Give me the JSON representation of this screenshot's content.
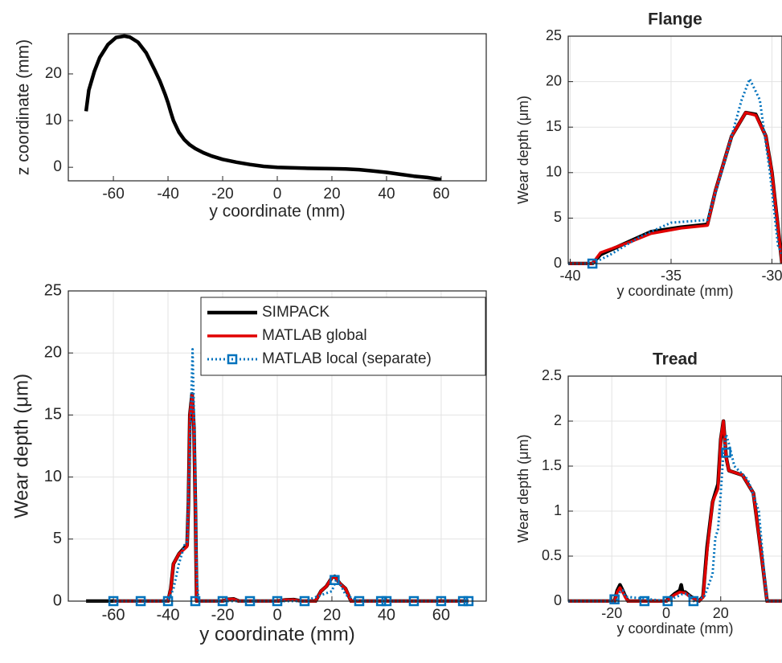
{
  "chart_data": [
    {
      "type": "line",
      "xlabel": "y coordinate (mm)",
      "ylabel": "z coordinate (mm)",
      "xlim": [
        -76.5,
        76.5
      ],
      "ylim": [
        -2.9,
        28.6
      ],
      "xticks": [
        -60,
        -40,
        -20,
        0,
        20,
        40,
        60
      ],
      "yticks": [
        0,
        10,
        20
      ],
      "grid": false,
      "series": [
        {
          "color": "#000000",
          "x": [
            -70,
            -69,
            -67,
            -65,
            -62,
            -59,
            -56,
            -54,
            -51,
            -48,
            -45,
            -43,
            -41,
            -40,
            -39,
            -38,
            -36,
            -34,
            -32,
            -30,
            -27,
            -24,
            -20,
            -15,
            -10,
            -5,
            0,
            5,
            10,
            15,
            20,
            25,
            30,
            35,
            40,
            45,
            50,
            55,
            60
          ],
          "values": [
            12,
            16.5,
            20.5,
            23.5,
            26.3,
            27.8,
            28.1,
            27.9,
            26.8,
            24.5,
            21,
            18.5,
            15.5,
            13.8,
            11.8,
            10,
            7.5,
            5.9,
            4.8,
            4,
            3.1,
            2.4,
            1.7,
            1.1,
            0.6,
            0.2,
            0,
            -0.1,
            -0.2,
            -0.25,
            -0.3,
            -0.35,
            -0.5,
            -0.8,
            -1.1,
            -1.5,
            -1.9,
            -2.2,
            -2.6
          ]
        }
      ]
    },
    {
      "type": "line",
      "xlabel": "y coordinate (mm)",
      "ylabel": "Wear depth (μm)",
      "xlim": [
        -76.5,
        76.5
      ],
      "ylim": [
        0,
        25
      ],
      "xticks": [
        -60,
        -40,
        -20,
        0,
        20,
        40,
        60
      ],
      "yticks": [
        0,
        5,
        10,
        15,
        20,
        25
      ],
      "grid": true,
      "legend": "upper right",
      "series": [
        {
          "name": "SIMPACK",
          "color": "#000000",
          "style": "solid",
          "x": [
            -70,
            -40,
            -39,
            -38,
            -36,
            -34,
            -33,
            -32.5,
            -32,
            -31.2,
            -30.5,
            -30,
            -29.5,
            -20,
            -18,
            -16,
            -14,
            0,
            3,
            6,
            9,
            14,
            16,
            18,
            20,
            21,
            23,
            25,
            27,
            70
          ],
          "values": [
            0,
            0,
            1,
            3,
            3.8,
            4.3,
            4.5,
            8,
            15,
            16.7,
            14,
            8,
            0,
            0,
            0.15,
            0.18,
            0,
            0,
            0.1,
            0.12,
            0,
            0,
            0.8,
            1.2,
            1.9,
            2,
            1.4,
            1,
            0,
            0
          ]
        },
        {
          "name": "MATLAB global",
          "color": "#e00000",
          "style": "solid",
          "x": [
            -60,
            -40,
            -39,
            -38,
            -36,
            -34,
            -33,
            -32.5,
            -32,
            -31.2,
            -30.5,
            -30,
            -29.5,
            -20,
            -18,
            -16,
            -14,
            0,
            3,
            6,
            9,
            14,
            16,
            18,
            20,
            21,
            23,
            25,
            27,
            70
          ],
          "values": [
            0,
            0,
            1,
            3,
            3.8,
            4.2,
            4.4,
            8,
            15,
            16.6,
            14,
            8,
            0,
            0,
            0.15,
            0.17,
            0,
            0,
            0.1,
            0.11,
            0,
            0,
            0.8,
            1.2,
            1.9,
            2,
            1.4,
            1,
            0,
            0
          ]
        },
        {
          "name": "MATLAB local (separate)",
          "color": "#0072bd",
          "style": "dotted",
          "x": [
            -60,
            -50,
            -40,
            -38,
            -36,
            -34,
            -33,
            -32,
            -31,
            -30.2,
            -29.5,
            -28.8,
            -20,
            -10,
            0,
            10,
            20,
            21.5,
            23,
            25,
            30,
            38,
            40,
            50,
            60,
            68,
            70
          ],
          "values": [
            0,
            0,
            0,
            1,
            3,
            4.5,
            4.8,
            12,
            20.3,
            12,
            2,
            0,
            0,
            0,
            0,
            0,
            0.8,
            1.7,
            1.4,
            0.5,
            0,
            0,
            0,
            0,
            0,
            0,
            0
          ],
          "markers": {
            "x": [
              -60,
              -50,
              -40,
              -30,
              -20,
              -10,
              0,
              10,
              21,
              30,
              38,
              40,
              50,
              60,
              68,
              70
            ],
            "values": [
              0,
              0,
              0,
              0,
              0,
              0,
              0,
              0,
              1.7,
              0,
              0,
              0,
              0,
              0,
              0,
              0
            ]
          }
        }
      ]
    },
    {
      "type": "line",
      "title": "Flange",
      "xlabel": "y coordinate (mm)",
      "ylabel": "Wear depth (μm)",
      "xlim": [
        -40.1,
        -29.5
      ],
      "ylim": [
        0,
        25
      ],
      "xticks": [
        -40,
        -35,
        -30
      ],
      "yticks": [
        0,
        5,
        10,
        15,
        20,
        25
      ],
      "grid": true,
      "series": [
        {
          "color": "#000000",
          "style": "solid",
          "x": [
            -40.1,
            -38.9,
            -38.5,
            -37,
            -36,
            -34.5,
            -33.2,
            -32.8,
            -32,
            -31.3,
            -30.8,
            -30.3,
            -30,
            -29.6,
            -29.5
          ],
          "values": [
            0,
            0,
            1,
            2.5,
            3.5,
            4,
            4.3,
            8,
            14,
            16.6,
            16.4,
            14,
            10,
            2,
            0
          ]
        },
        {
          "color": "#e00000",
          "style": "solid",
          "x": [
            -40.1,
            -38.9,
            -38.5,
            -37,
            -36,
            -34.5,
            -33.2,
            -32.8,
            -32,
            -31.3,
            -30.8,
            -30.3,
            -30,
            -29.6,
            -29.5
          ],
          "values": [
            0,
            0,
            1.2,
            2.4,
            3.3,
            3.9,
            4.2,
            8,
            14,
            16.6,
            16.3,
            14,
            10,
            2,
            0
          ]
        },
        {
          "color": "#0072bd",
          "style": "dotted",
          "x": [
            -40.1,
            -38.9,
            -38,
            -36.5,
            -35,
            -33.2,
            -32.5,
            -31.5,
            -31.1,
            -30.6,
            -30.1,
            -29.7,
            -29.3
          ],
          "values": [
            0,
            0,
            1,
            3,
            4.5,
            4.8,
            10,
            18,
            20.3,
            18,
            10,
            2,
            0
          ],
          "markers": {
            "x": [
              -38.9
            ],
            "values": [
              0
            ]
          }
        }
      ]
    },
    {
      "type": "line",
      "title": "Tread",
      "xlabel": "y coordinate (mm)",
      "ylabel": "Wear depth (μm)",
      "xlim": [
        -36,
        42.5
      ],
      "ylim": [
        0,
        2.5
      ],
      "xticks": [
        -20,
        0,
        20
      ],
      "yticks": [
        0,
        0.5,
        1,
        1.5,
        2,
        2.5
      ],
      "grid": true,
      "series": [
        {
          "color": "#000000",
          "style": "solid",
          "x": [
            -36,
            -19,
            -18,
            -17,
            -16,
            -15,
            -14,
            0,
            3,
            5,
            5.5,
            6,
            7,
            9,
            12,
            13.5,
            15,
            17,
            19,
            20,
            21,
            22,
            23,
            28,
            32,
            35,
            37,
            42.5
          ],
          "values": [
            0,
            0,
            0.12,
            0.18,
            0.12,
            0.05,
            0,
            0,
            0.08,
            0.12,
            0.18,
            0.1,
            0.1,
            0.05,
            0,
            0.05,
            0.6,
            1.1,
            1.3,
            1.8,
            2,
            1.6,
            1.45,
            1.4,
            1.2,
            0.5,
            0,
            0
          ]
        },
        {
          "color": "#e00000",
          "style": "solid",
          "x": [
            -36,
            -19,
            -18,
            -17,
            -16,
            -15,
            -14,
            0,
            3,
            5,
            7,
            9,
            12,
            13.5,
            15,
            17,
            19,
            20,
            21,
            22,
            23,
            28,
            32,
            35,
            37,
            42.5
          ],
          "values": [
            0,
            0,
            0.1,
            0.15,
            0.1,
            0.04,
            0,
            0,
            0.07,
            0.1,
            0.09,
            0.04,
            0,
            0.04,
            0.55,
            1.1,
            1.25,
            1.8,
            2,
            1.6,
            1.45,
            1.4,
            1.2,
            0.5,
            0,
            0
          ]
        },
        {
          "color": "#0072bd",
          "style": "dotted",
          "x": [
            -36,
            -19,
            -18,
            -17,
            -16,
            -15,
            0,
            4,
            6,
            8,
            10,
            14,
            17,
            18,
            19,
            20,
            21,
            22,
            23,
            25,
            30,
            34,
            36,
            37,
            42.5
          ],
          "values": [
            0,
            0,
            0.02,
            0.1,
            0.12,
            0.05,
            0,
            0.05,
            0.08,
            0.08,
            0,
            0.05,
            0.3,
            0.7,
            0.8,
            1.2,
            1.65,
            1.85,
            1.75,
            1.5,
            1.35,
            1,
            0.3,
            0,
            0
          ],
          "markers": {
            "x": [
              -19,
              -8,
              0.5,
              10,
              22
            ],
            "values": [
              0.02,
              0,
              0,
              0,
              1.65
            ]
          }
        }
      ]
    }
  ]
}
